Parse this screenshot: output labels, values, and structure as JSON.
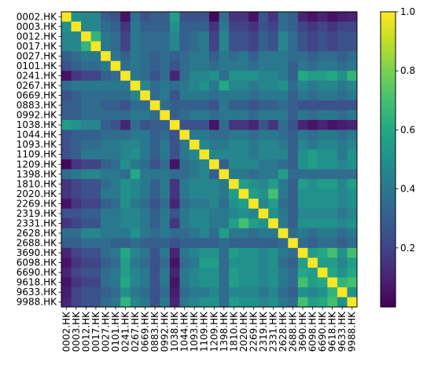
{
  "chart_data": {
    "type": "heatmap",
    "title": "",
    "xlabel": "",
    "ylabel": "",
    "tickers": [
      "0002.HK",
      "0003.HK",
      "0012.HK",
      "0017.HK",
      "0027.HK",
      "0101.HK",
      "0241.HK",
      "0267.HK",
      "0669.HK",
      "0883.HK",
      "0992.HK",
      "1038.HK",
      "1044.HK",
      "1093.HK",
      "1109.HK",
      "1209.HK",
      "1398.HK",
      "1810.HK",
      "2020.HK",
      "2269.HK",
      "2319.HK",
      "2331.HK",
      "2628.HK",
      "2688.HK",
      "3690.HK",
      "6098.HK",
      "6690.HK",
      "9618.HK",
      "9633.HK",
      "9988.HK"
    ],
    "colorbar": {
      "min": 0.0,
      "max": 1.0,
      "ticks": [
        "0.2",
        "0.4",
        "0.6",
        "0.8",
        "1.0"
      ]
    },
    "colormap": [
      "#440154",
      "#482475",
      "#414487",
      "#355f8d",
      "#2a788e",
      "#21918c",
      "#22a884",
      "#44bf70",
      "#7ad151",
      "#bddf26",
      "#fde725"
    ],
    "values": [
      [
        1.0,
        0.5,
        0.45,
        0.45,
        0.3,
        0.25,
        0.05,
        0.35,
        0.25,
        0.3,
        0.3,
        0.55,
        0.25,
        0.25,
        0.25,
        0.02,
        0.35,
        0.15,
        0.15,
        0.05,
        0.25,
        0.15,
        0.35,
        0.3,
        0.1,
        0.05,
        0.1,
        0.05,
        0.08,
        0.1
      ],
      [
        0.5,
        1.0,
        0.45,
        0.45,
        0.35,
        0.3,
        0.15,
        0.4,
        0.3,
        0.3,
        0.3,
        0.5,
        0.3,
        0.3,
        0.3,
        0.15,
        0.4,
        0.2,
        0.2,
        0.15,
        0.25,
        0.2,
        0.35,
        0.3,
        0.2,
        0.15,
        0.2,
        0.15,
        0.2,
        0.2
      ],
      [
        0.45,
        0.45,
        1.0,
        0.65,
        0.4,
        0.35,
        0.2,
        0.4,
        0.35,
        0.35,
        0.35,
        0.45,
        0.3,
        0.35,
        0.4,
        0.2,
        0.45,
        0.25,
        0.25,
        0.2,
        0.3,
        0.25,
        0.45,
        0.35,
        0.25,
        0.2,
        0.25,
        0.2,
        0.25,
        0.25
      ],
      [
        0.45,
        0.45,
        0.65,
        1.0,
        0.4,
        0.35,
        0.2,
        0.4,
        0.35,
        0.35,
        0.35,
        0.45,
        0.3,
        0.35,
        0.4,
        0.2,
        0.45,
        0.25,
        0.25,
        0.2,
        0.3,
        0.25,
        0.45,
        0.35,
        0.25,
        0.2,
        0.25,
        0.2,
        0.25,
        0.25
      ],
      [
        0.3,
        0.35,
        0.4,
        0.4,
        1.0,
        0.4,
        0.3,
        0.4,
        0.35,
        0.3,
        0.35,
        0.3,
        0.35,
        0.4,
        0.4,
        0.3,
        0.4,
        0.35,
        0.4,
        0.3,
        0.4,
        0.4,
        0.4,
        0.35,
        0.35,
        0.3,
        0.35,
        0.35,
        0.3,
        0.35
      ],
      [
        0.25,
        0.3,
        0.35,
        0.35,
        0.4,
        1.0,
        0.35,
        0.4,
        0.35,
        0.3,
        0.35,
        0.25,
        0.35,
        0.4,
        0.4,
        0.35,
        0.4,
        0.4,
        0.4,
        0.35,
        0.4,
        0.4,
        0.4,
        0.3,
        0.4,
        0.35,
        0.4,
        0.4,
        0.35,
        0.4
      ],
      [
        0.05,
        0.15,
        0.2,
        0.2,
        0.3,
        0.35,
        1.0,
        0.4,
        0.35,
        0.25,
        0.35,
        0.1,
        0.35,
        0.45,
        0.45,
        0.5,
        0.35,
        0.5,
        0.5,
        0.5,
        0.45,
        0.45,
        0.4,
        0.3,
        0.6,
        0.55,
        0.55,
        0.6,
        0.5,
        0.65
      ],
      [
        0.35,
        0.4,
        0.4,
        0.4,
        0.4,
        0.4,
        0.4,
        1.0,
        0.45,
        0.35,
        0.4,
        0.35,
        0.4,
        0.45,
        0.5,
        0.4,
        0.6,
        0.45,
        0.45,
        0.4,
        0.45,
        0.45,
        0.5,
        0.35,
        0.45,
        0.4,
        0.45,
        0.45,
        0.4,
        0.45
      ],
      [
        0.25,
        0.3,
        0.35,
        0.35,
        0.35,
        0.35,
        0.35,
        0.45,
        1.0,
        0.35,
        0.4,
        0.25,
        0.4,
        0.4,
        0.4,
        0.35,
        0.4,
        0.4,
        0.4,
        0.35,
        0.4,
        0.4,
        0.4,
        0.3,
        0.4,
        0.35,
        0.4,
        0.4,
        0.35,
        0.4
      ],
      [
        0.3,
        0.3,
        0.35,
        0.35,
        0.3,
        0.3,
        0.25,
        0.35,
        0.35,
        1.0,
        0.35,
        0.3,
        0.3,
        0.3,
        0.3,
        0.25,
        0.4,
        0.3,
        0.3,
        0.25,
        0.3,
        0.3,
        0.35,
        0.3,
        0.25,
        0.25,
        0.25,
        0.25,
        0.25,
        0.25
      ],
      [
        0.3,
        0.3,
        0.35,
        0.35,
        0.35,
        0.35,
        0.35,
        0.4,
        0.4,
        0.35,
        1.0,
        0.3,
        0.35,
        0.4,
        0.4,
        0.35,
        0.4,
        0.4,
        0.4,
        0.35,
        0.4,
        0.4,
        0.4,
        0.3,
        0.4,
        0.35,
        0.4,
        0.4,
        0.35,
        0.4
      ],
      [
        0.55,
        0.5,
        0.45,
        0.45,
        0.3,
        0.25,
        0.1,
        0.35,
        0.25,
        0.3,
        0.3,
        1.0,
        0.25,
        0.25,
        0.25,
        0.05,
        0.35,
        0.15,
        0.15,
        0.1,
        0.25,
        0.15,
        0.35,
        0.25,
        0.1,
        0.05,
        0.1,
        0.05,
        0.08,
        0.1
      ],
      [
        0.25,
        0.3,
        0.3,
        0.3,
        0.35,
        0.35,
        0.35,
        0.4,
        0.4,
        0.3,
        0.35,
        0.25,
        1.0,
        0.4,
        0.4,
        0.35,
        0.35,
        0.4,
        0.4,
        0.35,
        0.4,
        0.4,
        0.35,
        0.3,
        0.4,
        0.35,
        0.4,
        0.4,
        0.35,
        0.4
      ],
      [
        0.25,
        0.3,
        0.35,
        0.35,
        0.4,
        0.4,
        0.45,
        0.45,
        0.4,
        0.3,
        0.4,
        0.25,
        0.4,
        1.0,
        0.45,
        0.4,
        0.4,
        0.45,
        0.45,
        0.4,
        0.45,
        0.45,
        0.4,
        0.3,
        0.45,
        0.4,
        0.45,
        0.45,
        0.4,
        0.45
      ],
      [
        0.25,
        0.3,
        0.4,
        0.4,
        0.4,
        0.4,
        0.45,
        0.5,
        0.4,
        0.3,
        0.4,
        0.25,
        0.4,
        0.45,
        1.0,
        0.45,
        0.45,
        0.45,
        0.45,
        0.4,
        0.45,
        0.45,
        0.45,
        0.3,
        0.5,
        0.55,
        0.5,
        0.5,
        0.4,
        0.5
      ],
      [
        0.02,
        0.15,
        0.2,
        0.2,
        0.3,
        0.35,
        0.5,
        0.4,
        0.35,
        0.25,
        0.35,
        0.05,
        0.35,
        0.4,
        0.45,
        1.0,
        0.3,
        0.45,
        0.45,
        0.45,
        0.4,
        0.4,
        0.35,
        0.3,
        0.5,
        0.55,
        0.5,
        0.5,
        0.45,
        0.5
      ],
      [
        0.35,
        0.4,
        0.45,
        0.45,
        0.4,
        0.4,
        0.35,
        0.6,
        0.4,
        0.4,
        0.4,
        0.35,
        0.35,
        0.4,
        0.45,
        0.3,
        1.0,
        0.4,
        0.4,
        0.35,
        0.4,
        0.4,
        0.55,
        0.35,
        0.35,
        0.35,
        0.35,
        0.35,
        0.35,
        0.35
      ],
      [
        0.15,
        0.2,
        0.25,
        0.25,
        0.35,
        0.4,
        0.5,
        0.45,
        0.4,
        0.3,
        0.4,
        0.15,
        0.4,
        0.45,
        0.45,
        0.45,
        0.4,
        1.0,
        0.55,
        0.5,
        0.45,
        0.55,
        0.4,
        0.3,
        0.55,
        0.5,
        0.55,
        0.55,
        0.45,
        0.55
      ],
      [
        0.15,
        0.2,
        0.25,
        0.25,
        0.4,
        0.4,
        0.5,
        0.45,
        0.4,
        0.3,
        0.4,
        0.15,
        0.4,
        0.45,
        0.45,
        0.45,
        0.4,
        0.55,
        1.0,
        0.55,
        0.5,
        0.7,
        0.4,
        0.3,
        0.5,
        0.5,
        0.5,
        0.5,
        0.45,
        0.5
      ],
      [
        0.05,
        0.15,
        0.2,
        0.2,
        0.3,
        0.35,
        0.5,
        0.4,
        0.35,
        0.25,
        0.35,
        0.1,
        0.35,
        0.4,
        0.4,
        0.45,
        0.35,
        0.5,
        0.55,
        1.0,
        0.45,
        0.55,
        0.35,
        0.3,
        0.5,
        0.5,
        0.5,
        0.5,
        0.45,
        0.5
      ],
      [
        0.25,
        0.25,
        0.3,
        0.3,
        0.4,
        0.4,
        0.45,
        0.45,
        0.4,
        0.3,
        0.4,
        0.25,
        0.4,
        0.45,
        0.45,
        0.4,
        0.4,
        0.45,
        0.5,
        0.45,
        1.0,
        0.5,
        0.4,
        0.3,
        0.45,
        0.45,
        0.45,
        0.45,
        0.4,
        0.45
      ],
      [
        0.15,
        0.2,
        0.25,
        0.25,
        0.4,
        0.4,
        0.45,
        0.45,
        0.4,
        0.3,
        0.4,
        0.15,
        0.4,
        0.45,
        0.45,
        0.4,
        0.4,
        0.55,
        0.7,
        0.55,
        0.5,
        1.0,
        0.4,
        0.3,
        0.5,
        0.5,
        0.5,
        0.5,
        0.45,
        0.5
      ],
      [
        0.35,
        0.35,
        0.45,
        0.45,
        0.4,
        0.4,
        0.4,
        0.5,
        0.4,
        0.35,
        0.4,
        0.35,
        0.35,
        0.4,
        0.45,
        0.35,
        0.55,
        0.4,
        0.4,
        0.35,
        0.4,
        0.4,
        1.0,
        0.35,
        0.4,
        0.35,
        0.4,
        0.4,
        0.35,
        0.4
      ],
      [
        0.3,
        0.3,
        0.35,
        0.35,
        0.35,
        0.3,
        0.3,
        0.35,
        0.3,
        0.3,
        0.3,
        0.25,
        0.3,
        0.3,
        0.3,
        0.3,
        0.35,
        0.3,
        0.3,
        0.3,
        0.3,
        0.3,
        0.35,
        1.0,
        0.35,
        0.3,
        0.35,
        0.35,
        0.3,
        0.35
      ],
      [
        0.1,
        0.2,
        0.25,
        0.25,
        0.35,
        0.4,
        0.6,
        0.45,
        0.4,
        0.25,
        0.4,
        0.1,
        0.4,
        0.45,
        0.5,
        0.5,
        0.35,
        0.55,
        0.5,
        0.5,
        0.45,
        0.5,
        0.4,
        0.35,
        1.0,
        0.55,
        0.6,
        0.7,
        0.5,
        0.7
      ],
      [
        0.05,
        0.15,
        0.2,
        0.2,
        0.3,
        0.35,
        0.55,
        0.4,
        0.35,
        0.25,
        0.35,
        0.05,
        0.35,
        0.4,
        0.55,
        0.55,
        0.35,
        0.5,
        0.5,
        0.5,
        0.45,
        0.5,
        0.35,
        0.3,
        0.55,
        1.0,
        0.55,
        0.55,
        0.45,
        0.55
      ],
      [
        0.1,
        0.2,
        0.25,
        0.25,
        0.35,
        0.4,
        0.55,
        0.45,
        0.4,
        0.25,
        0.4,
        0.1,
        0.4,
        0.45,
        0.5,
        0.5,
        0.35,
        0.55,
        0.5,
        0.5,
        0.45,
        0.5,
        0.4,
        0.35,
        0.6,
        0.55,
        1.0,
        0.6,
        0.5,
        0.6
      ],
      [
        0.05,
        0.15,
        0.2,
        0.2,
        0.35,
        0.4,
        0.6,
        0.45,
        0.4,
        0.25,
        0.4,
        0.05,
        0.4,
        0.45,
        0.5,
        0.5,
        0.35,
        0.55,
        0.5,
        0.5,
        0.45,
        0.5,
        0.4,
        0.35,
        0.7,
        0.55,
        0.6,
        1.0,
        0.65,
        0.7
      ],
      [
        0.08,
        0.2,
        0.25,
        0.25,
        0.3,
        0.35,
        0.5,
        0.4,
        0.35,
        0.25,
        0.35,
        0.08,
        0.35,
        0.4,
        0.4,
        0.45,
        0.35,
        0.45,
        0.45,
        0.45,
        0.4,
        0.45,
        0.35,
        0.3,
        0.5,
        0.45,
        0.5,
        0.65,
        1.0,
        0.5
      ],
      [
        0.1,
        0.2,
        0.25,
        0.25,
        0.35,
        0.4,
        0.65,
        0.45,
        0.4,
        0.25,
        0.4,
        0.1,
        0.4,
        0.45,
        0.5,
        0.5,
        0.35,
        0.55,
        0.5,
        0.5,
        0.45,
        0.5,
        0.4,
        0.35,
        0.7,
        0.55,
        0.6,
        0.7,
        0.5,
        1.0
      ]
    ]
  }
}
